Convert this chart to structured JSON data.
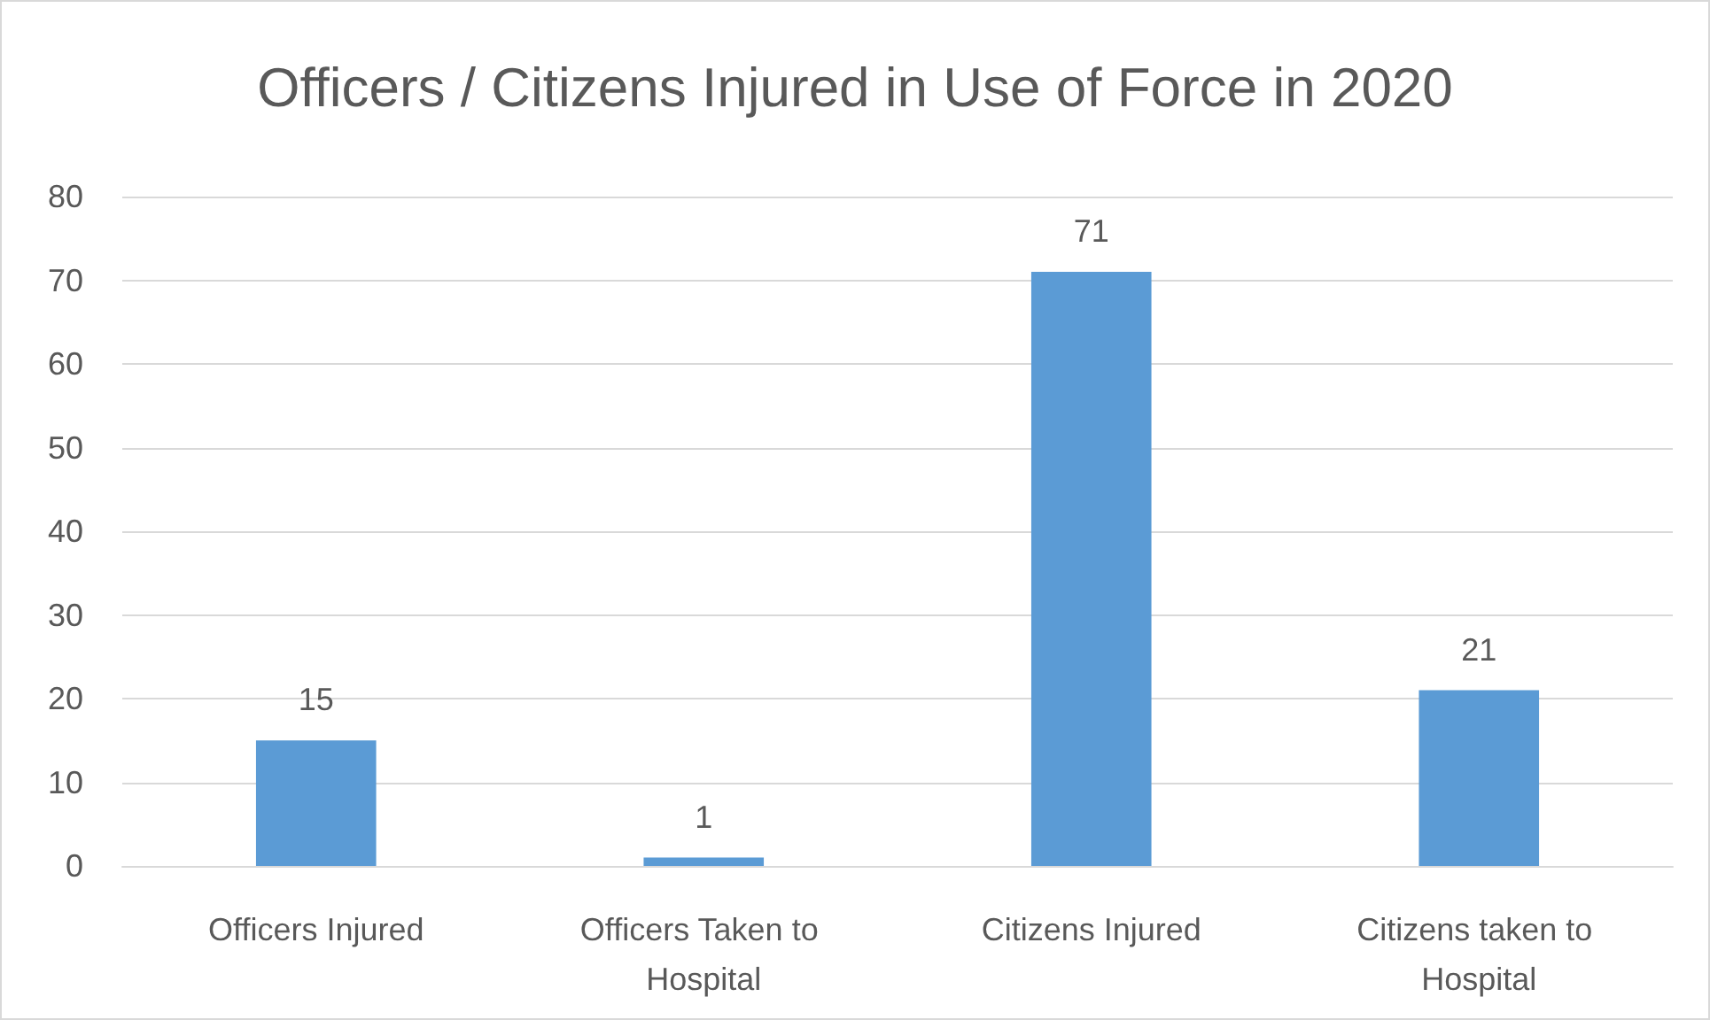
{
  "chart_data": {
    "type": "bar",
    "title": "Officers / Citizens Injured in Use of Force in 2020",
    "categories": [
      "Officers Injured",
      "Officers Taken to Hospital",
      "Citizens Injured",
      "Citizens taken to Hospital"
    ],
    "values": [
      15,
      1,
      71,
      21
    ],
    "color": "#5b9bd5",
    "data_labels": true,
    "ylim": [
      0,
      80
    ],
    "yticks": [
      0,
      10,
      20,
      30,
      40,
      50,
      60,
      70,
      80
    ],
    "grid": "y"
  }
}
